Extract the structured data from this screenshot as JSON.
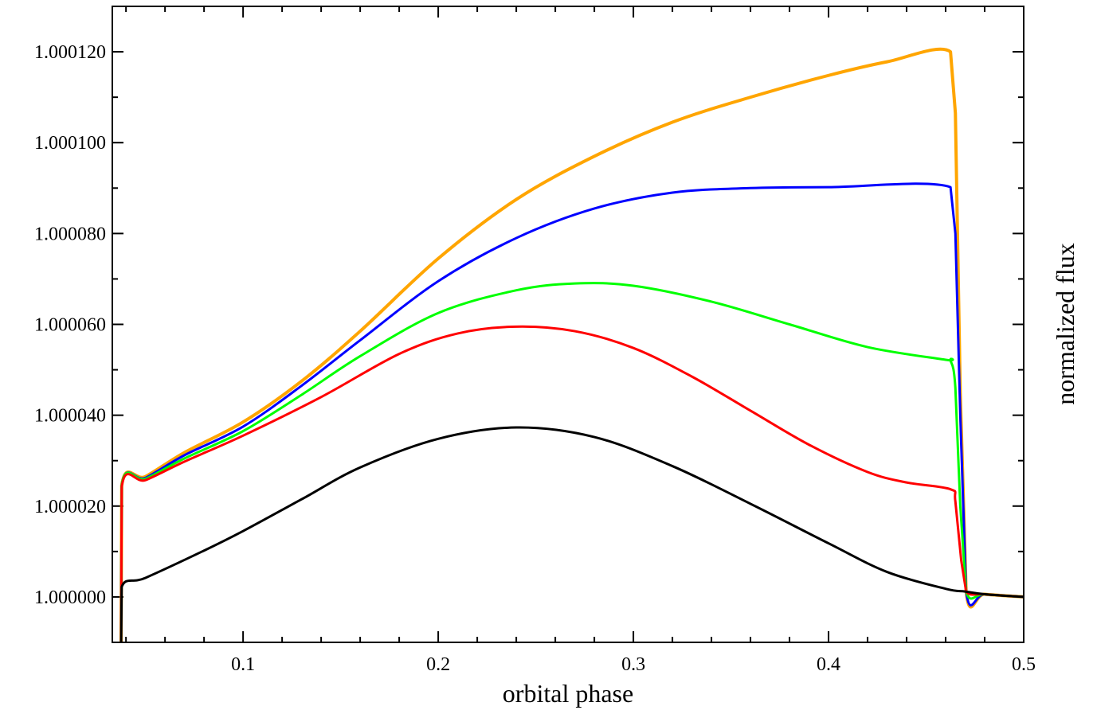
{
  "chart_data": {
    "type": "line",
    "title": "",
    "xlabel": "orbital phase",
    "ylabel": "normalized flux",
    "xlim": [
      0.033,
      0.5
    ],
    "ylim": [
      0.99999,
      1.00013
    ],
    "xticks": [
      0.1,
      0.2,
      0.3,
      0.4,
      0.5
    ],
    "xtick_labels": [
      "0.1",
      "0.2",
      "0.3",
      "0.4",
      "0.5"
    ],
    "yticks": [
      1.0,
      1.00002,
      1.00004,
      1.00006,
      1.00008,
      1.0001,
      1.00012
    ],
    "ytick_labels": [
      "1.000000",
      "1.000020",
      "1.000040",
      "1.000060",
      "1.000080",
      "1.000100",
      "1.000120"
    ],
    "grid": false,
    "legend": "none",
    "series": [
      {
        "color": "#ffa500",
        "line_width": 4,
        "points": [
          [
            0.0375,
            0.99999
          ],
          [
            0.0378,
            1.0000245
          ],
          [
            0.05,
            1.0000265
          ],
          [
            0.07,
            1.0000318
          ],
          [
            0.1,
            1.0000385
          ],
          [
            0.13,
            1.0000475
          ],
          [
            0.16,
            1.0000585
          ],
          [
            0.2,
            1.0000745
          ],
          [
            0.24,
            1.0000875
          ],
          [
            0.28,
            1.000097
          ],
          [
            0.32,
            1.0001045
          ],
          [
            0.36,
            1.00011
          ],
          [
            0.4,
            1.0001148
          ],
          [
            0.43,
            1.0001178
          ],
          [
            0.4625,
            1.00012
          ],
          [
            0.465,
            1.0001065
          ],
          [
            0.4675,
            1.000045
          ],
          [
            0.4705,
            1.0000012
          ],
          [
            0.48,
            1.0000006
          ],
          [
            0.5,
            1.0
          ]
        ]
      },
      {
        "color": "#0000ff",
        "line_width": 3,
        "points": [
          [
            0.0375,
            0.99999
          ],
          [
            0.0378,
            1.0000245
          ],
          [
            0.05,
            1.0000262
          ],
          [
            0.07,
            1.0000312
          ],
          [
            0.1,
            1.0000375
          ],
          [
            0.13,
            1.0000465
          ],
          [
            0.16,
            1.0000565
          ],
          [
            0.2,
            1.0000695
          ],
          [
            0.24,
            1.000079
          ],
          [
            0.28,
            1.0000855
          ],
          [
            0.32,
            1.000089
          ],
          [
            0.36,
            1.00009
          ],
          [
            0.4,
            1.0000902
          ],
          [
            0.4625,
            1.0000902
          ],
          [
            0.465,
            1.00008
          ],
          [
            0.4675,
            1.00004
          ],
          [
            0.4705,
            1.0000012
          ],
          [
            0.48,
            1.0000006
          ],
          [
            0.5,
            1.0
          ]
        ]
      },
      {
        "color": "#00ff00",
        "line_width": 3,
        "points": [
          [
            0.0375,
            0.99999
          ],
          [
            0.0378,
            1.0000245
          ],
          [
            0.05,
            1.000026
          ],
          [
            0.07,
            1.0000305
          ],
          [
            0.1,
            1.0000365
          ],
          [
            0.13,
            1.0000445
          ],
          [
            0.16,
            1.000053
          ],
          [
            0.2,
            1.0000625
          ],
          [
            0.24,
            1.0000675
          ],
          [
            0.27,
            1.000069
          ],
          [
            0.3,
            1.0000685
          ],
          [
            0.34,
            1.000065
          ],
          [
            0.38,
            1.00006
          ],
          [
            0.42,
            1.000055
          ],
          [
            0.46,
            1.0000522
          ],
          [
            0.4625,
            1.000052
          ],
          [
            0.465,
            1.000046
          ],
          [
            0.4675,
            1.00002
          ],
          [
            0.4705,
            1.0000012
          ],
          [
            0.48,
            1.0000006
          ],
          [
            0.5,
            1.0
          ]
        ]
      },
      {
        "color": "#ff0000",
        "line_width": 3,
        "points": [
          [
            0.0375,
            0.99999
          ],
          [
            0.0378,
            1.0000242
          ],
          [
            0.05,
            1.0000257
          ],
          [
            0.07,
            1.0000298
          ],
          [
            0.1,
            1.0000355
          ],
          [
            0.14,
            1.000044
          ],
          [
            0.18,
            1.0000535
          ],
          [
            0.21,
            1.000058
          ],
          [
            0.24,
            1.0000595
          ],
          [
            0.27,
            1.0000585
          ],
          [
            0.3,
            1.0000548
          ],
          [
            0.33,
            1.0000485
          ],
          [
            0.36,
            1.000041
          ],
          [
            0.39,
            1.0000335
          ],
          [
            0.42,
            1.0000275
          ],
          [
            0.44,
            1.0000252
          ],
          [
            0.4625,
            1.0000237
          ],
          [
            0.465,
            1.000021
          ],
          [
            0.468,
            1.000008
          ],
          [
            0.4705,
            1.0000012
          ],
          [
            0.48,
            1.0000006
          ],
          [
            0.5,
            1.0
          ]
        ]
      },
      {
        "color": "#000000",
        "line_width": 3,
        "points": [
          [
            0.0375,
            0.99999
          ],
          [
            0.0378,
            1.0000022
          ],
          [
            0.05,
            1.0000042
          ],
          [
            0.08,
            1.0000102
          ],
          [
            0.1,
            1.0000145
          ],
          [
            0.13,
            1.0000215
          ],
          [
            0.16,
            1.0000285
          ],
          [
            0.2,
            1.0000348
          ],
          [
            0.24,
            1.0000373
          ],
          [
            0.28,
            1.0000352
          ],
          [
            0.32,
            1.0000288
          ],
          [
            0.36,
            1.0000205
          ],
          [
            0.4,
            1.0000118
          ],
          [
            0.43,
            1.0000055
          ],
          [
            0.46,
            1.0000018
          ],
          [
            0.47,
            1.0000012
          ],
          [
            0.48,
            1.0000006
          ],
          [
            0.5,
            1.0
          ]
        ]
      }
    ]
  }
}
